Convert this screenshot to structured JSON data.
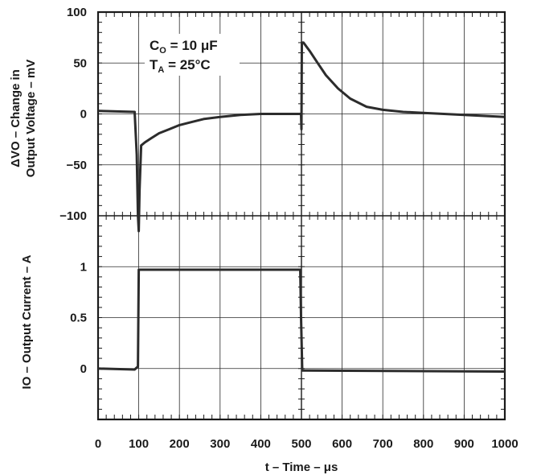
{
  "chart_data": [
    {
      "type": "line",
      "panel": "top",
      "xlim": [
        0,
        1000
      ],
      "ylim": [
        -100,
        100
      ],
      "y_ticks": [
        "100",
        "50",
        "0",
        "−50",
        "−100"
      ],
      "ylabel_line1": "ΔVO – Change in",
      "ylabel_line2": "Output Voltage – mV",
      "annotation": {
        "c_main": "C",
        "c_sub": "O",
        "c_rest": " = 10 μF",
        "t_main": "T",
        "t_sub": "A",
        "t_rest": " = 25°C"
      },
      "series": [
        {
          "x": [
            0,
            90,
            95,
            98,
            100,
            102,
            106,
            115,
            130,
            150,
            175,
            200,
            230,
            260,
            300,
            350,
            400,
            450,
            499,
            500,
            501,
            505,
            520,
            540,
            560,
            590,
            620,
            660,
            700,
            750,
            800,
            850,
            900,
            950,
            1000
          ],
          "y": [
            3,
            2,
            -40,
            -100,
            -115,
            -75,
            -31,
            -28,
            -24,
            -19,
            -15,
            -11,
            -8,
            -5,
            -3,
            -1,
            0,
            0,
            0,
            -15,
            70,
            70,
            62,
            50,
            38,
            25,
            15,
            7,
            4,
            2,
            1,
            0,
            -1,
            -2,
            -3
          ]
        }
      ]
    },
    {
      "type": "line",
      "panel": "bottom",
      "xlim": [
        0,
        1000
      ],
      "ylim": [
        -0.5,
        1.5
      ],
      "y_ticks": [
        "1",
        "0.5",
        "0"
      ],
      "ylabel": "IO – Output Current – A",
      "xlabel": "t – Time – μs",
      "x_ticks": [
        "0",
        "100",
        "200",
        "300",
        "400",
        "500",
        "600",
        "700",
        "800",
        "900",
        "1000"
      ],
      "series": [
        {
          "x": [
            0,
            90,
            98,
            100,
            110,
            497,
            499,
            502,
            510,
            1000
          ],
          "y": [
            0,
            -0.01,
            0.02,
            0.97,
            0.97,
            0.97,
            0.5,
            -0.02,
            -0.02,
            -0.03
          ]
        }
      ]
    }
  ]
}
